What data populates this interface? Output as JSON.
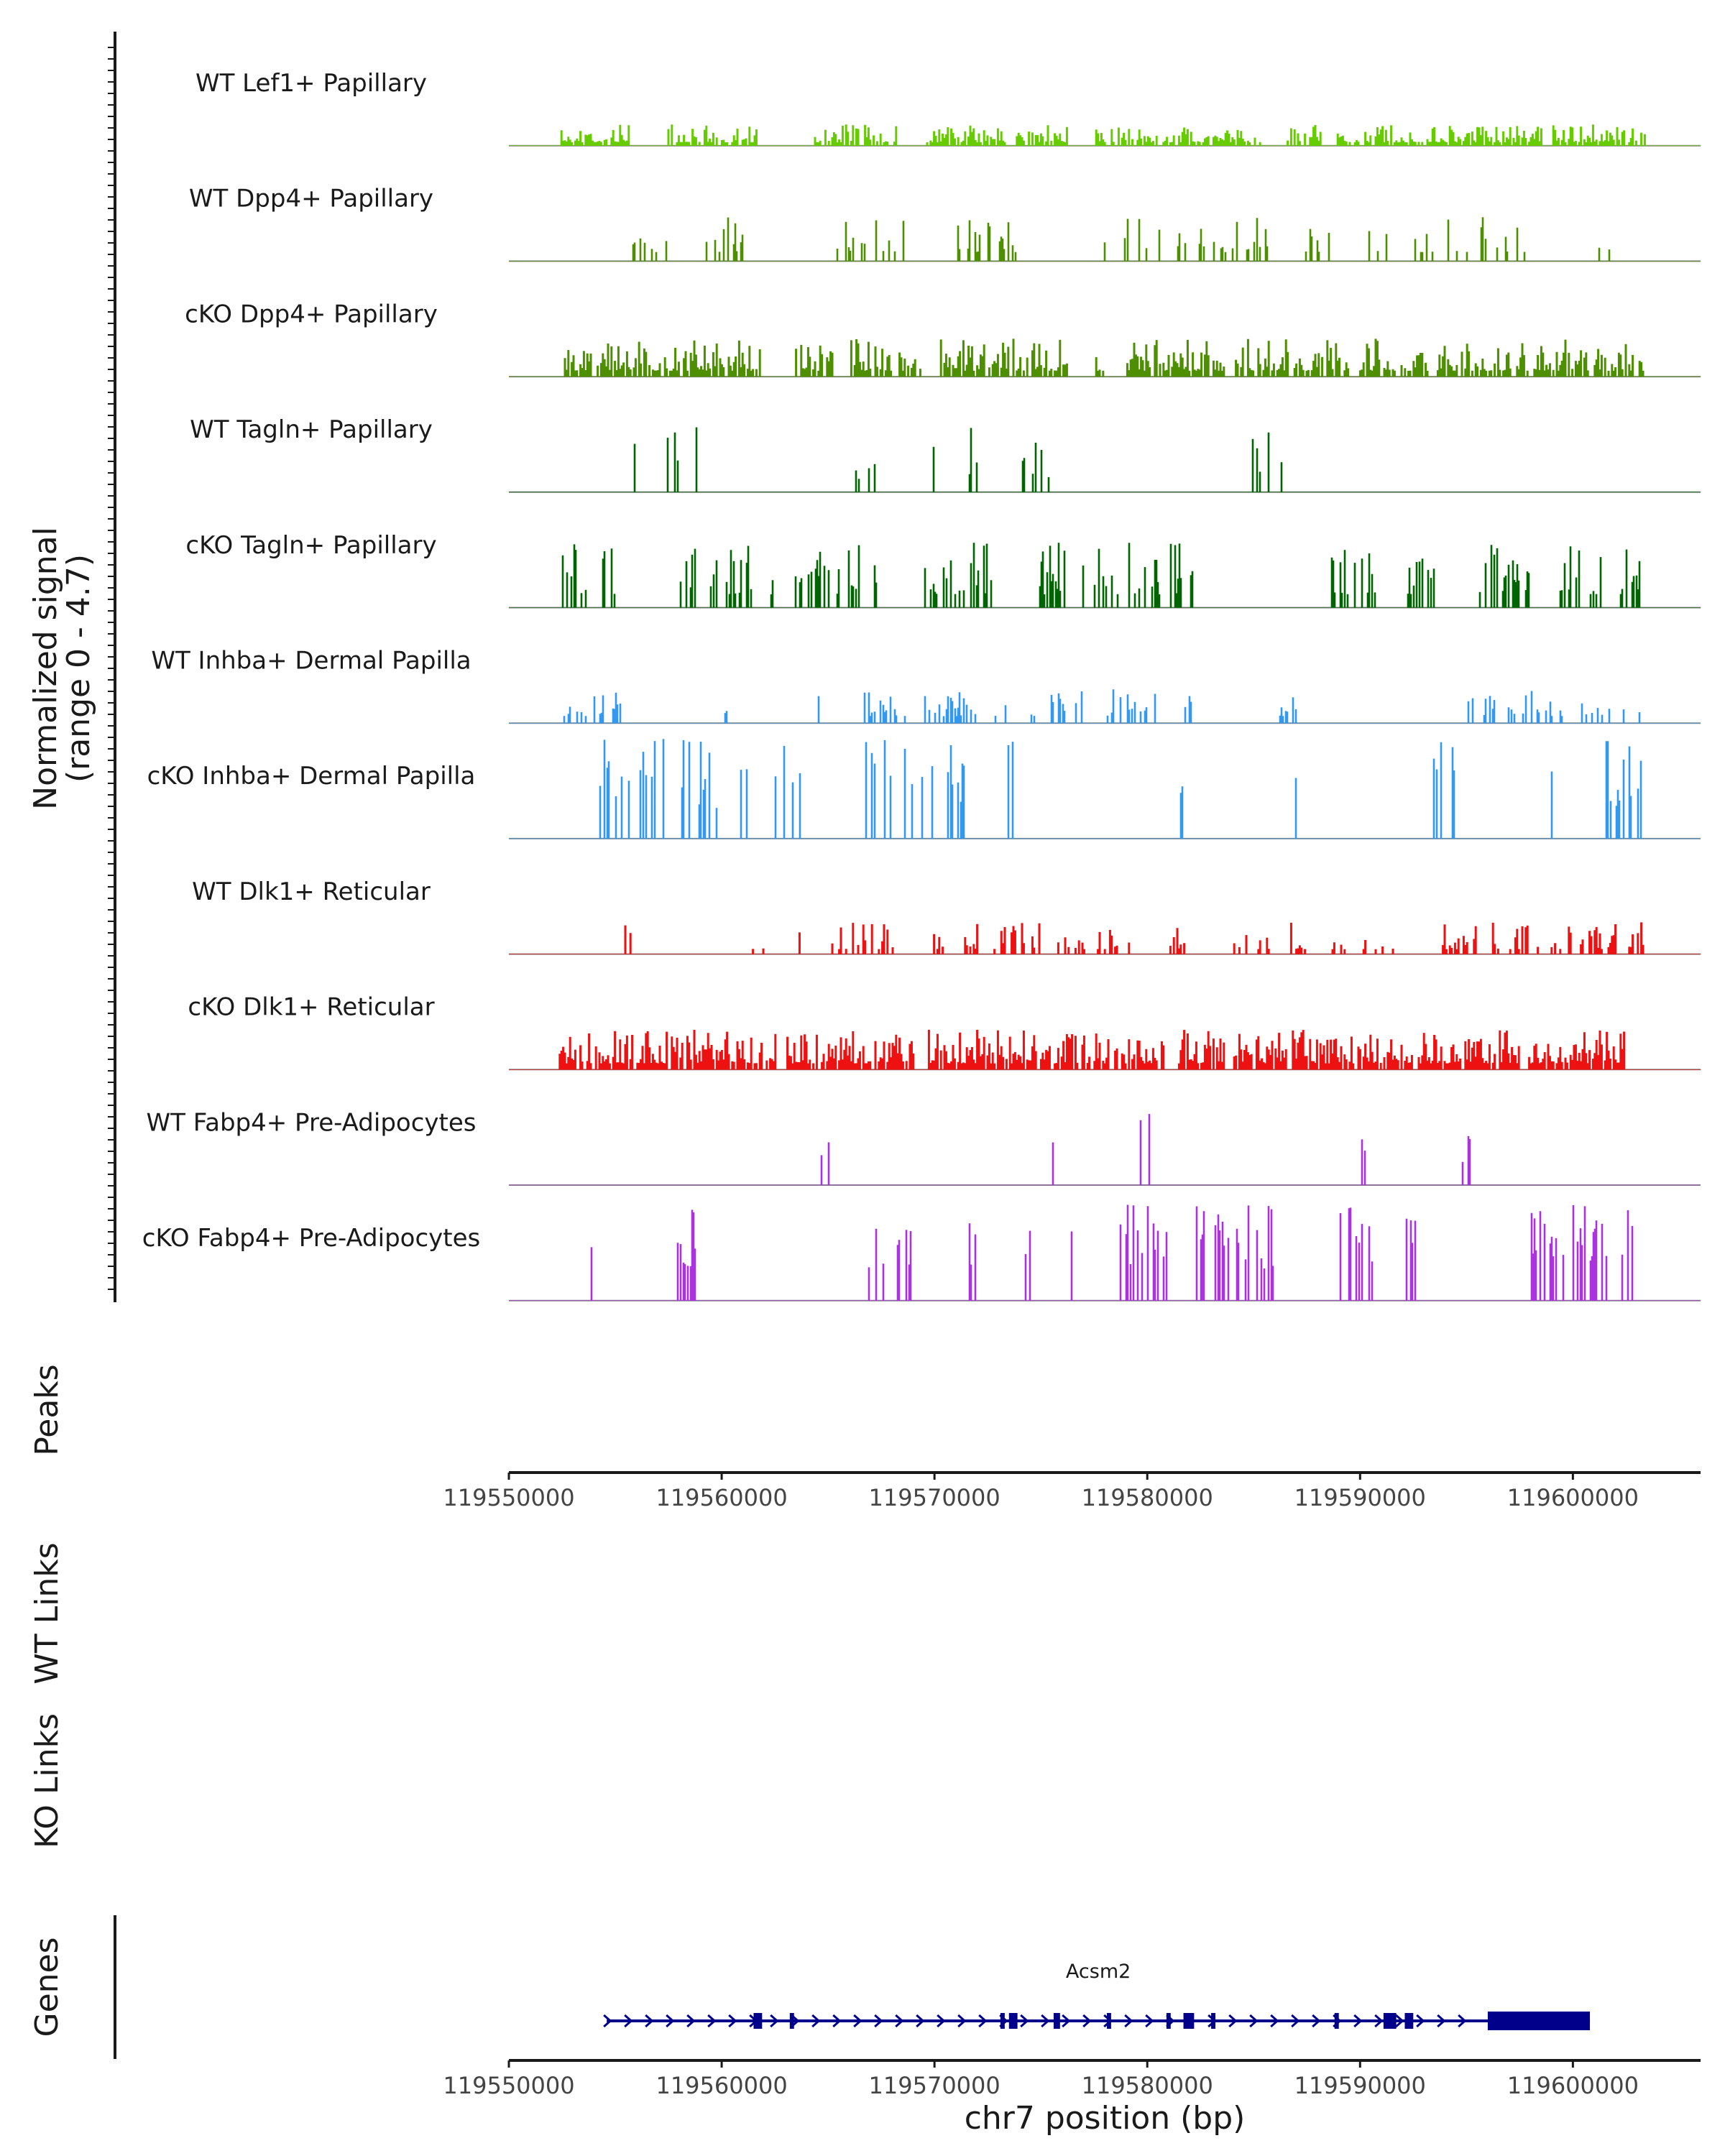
{
  "chart_data": {
    "type": "area",
    "region": {
      "chromosome": "chr7",
      "start": 119550000,
      "end": 119606000
    },
    "coverage_ylabel_line1": "Normalized signal",
    "coverage_ylabel_line2": "(range 0 - 4.7)",
    "y_range": [
      0,
      4.7
    ],
    "tracks": [
      {
        "name": "WT Lef1+ Papillary",
        "color": "#66cc00",
        "style": "dense",
        "density": 0.75,
        "scale": 0.2,
        "spans": [
          [
            119552400,
            119555600
          ],
          [
            119557400,
            119561600
          ],
          [
            119564300,
            119568400
          ],
          [
            119569500,
            119573400
          ],
          [
            119573700,
            119576200
          ],
          [
            119577500,
            119585400
          ],
          [
            119586500,
            119588100
          ],
          [
            119588900,
            119598600
          ],
          [
            119599000,
            119603400
          ]
        ]
      },
      {
        "name": "WT Dpp4+ Papillary",
        "color": "#4d8f00",
        "style": "sparse",
        "density": 0.22,
        "scale": 0.42,
        "spans": [
          [
            119555800,
            119558000
          ],
          [
            119558800,
            119561400
          ],
          [
            119565400,
            119568700
          ],
          [
            119570700,
            119573800
          ],
          [
            119577800,
            119585600
          ],
          [
            119587100,
            119597700
          ],
          [
            119601000,
            119601700
          ]
        ]
      },
      {
        "name": "cKO Dpp4+ Papillary",
        "color": "#4d8f00",
        "style": "dense",
        "density": 0.7,
        "scale": 0.36,
        "spans": [
          [
            119552400,
            119561800
          ],
          [
            119563400,
            119565200
          ],
          [
            119566000,
            119569400
          ],
          [
            119570200,
            119576200
          ],
          [
            119577500,
            119578200
          ],
          [
            119579000,
            119583600
          ],
          [
            119584100,
            119589400
          ],
          [
            119589900,
            119593200
          ],
          [
            119593600,
            119603400
          ]
        ]
      },
      {
        "name": "WT Tagln+ Papillary",
        "color": "#006400",
        "style": "sparse",
        "density": 0.28,
        "scale": 0.62,
        "spans": [
          [
            119555700,
            119556000
          ],
          [
            119557400,
            119558800
          ],
          [
            119566100,
            119567800
          ],
          [
            119569700,
            119570000
          ],
          [
            119571400,
            119572200
          ],
          [
            119573700,
            119575600
          ],
          [
            119584800,
            119586600
          ]
        ]
      },
      {
        "name": "cKO Tagln+ Papillary",
        "color": "#006400",
        "style": "sparse",
        "density": 0.35,
        "scale": 0.62,
        "spans": [
          [
            119552400,
            119553600
          ],
          [
            119554000,
            119555100
          ],
          [
            119557300,
            119561400
          ],
          [
            119561800,
            119562600
          ],
          [
            119563400,
            119564800
          ],
          [
            119564900,
            119567400
          ],
          [
            119569500,
            119572800
          ],
          [
            119574900,
            119576400
          ],
          [
            119576900,
            119578700
          ],
          [
            119579100,
            119580800
          ],
          [
            119581000,
            119582100
          ],
          [
            119588500,
            119590700
          ],
          [
            119592200,
            119593700
          ],
          [
            119595500,
            119598000
          ],
          [
            119599300,
            119601600
          ],
          [
            119602100,
            119603200
          ]
        ]
      },
      {
        "name": "WT Inhba+ Dermal Papilla",
        "color": "#3399ee",
        "style": "sparse",
        "density": 0.3,
        "scale": 0.32,
        "spans": [
          [
            119552300,
            119555300
          ],
          [
            119559800,
            119560300
          ],
          [
            119564400,
            119564600
          ],
          [
            119566400,
            119572100
          ],
          [
            119572300,
            119573800
          ],
          [
            119574500,
            119578000
          ],
          [
            119578100,
            119580400
          ],
          [
            119581100,
            119582100
          ],
          [
            119586200,
            119587000
          ],
          [
            119594900,
            119599900
          ],
          [
            119600200,
            119603200
          ]
        ]
      },
      {
        "name": "cKO Inhba+ Dermal Papilla",
        "color": "#3399ee",
        "style": "spiky",
        "density": 0.3,
        "scale": 0.95,
        "spans": [
          [
            119554100,
            119558200
          ],
          [
            119558400,
            119560200
          ],
          [
            119560800,
            119561400
          ],
          [
            119562400,
            119564400
          ],
          [
            119566600,
            119570000
          ],
          [
            119570500,
            119571800
          ],
          [
            119573300,
            119573800
          ],
          [
            119581500,
            119582100
          ],
          [
            119586600,
            119587100
          ],
          [
            119588700,
            119588900
          ],
          [
            119593300,
            119594400
          ],
          [
            119598800,
            119599400
          ],
          [
            119601400,
            119603300
          ]
        ]
      },
      {
        "name": "WT Dlk1+ Reticular",
        "color": "#ee1111",
        "style": "dense",
        "density": 0.4,
        "scale": 0.3,
        "spans": [
          [
            119555400,
            119555800
          ],
          [
            119561300,
            119562000
          ],
          [
            119563000,
            119563800
          ],
          [
            119564600,
            119568000
          ],
          [
            119569800,
            119570700
          ],
          [
            119571400,
            119572300
          ],
          [
            119572700,
            119574900
          ],
          [
            119575700,
            119577000
          ],
          [
            119577600,
            119579200
          ],
          [
            119580900,
            119581700
          ],
          [
            119584000,
            119585700
          ],
          [
            119586500,
            119587600
          ],
          [
            119588300,
            119589300
          ],
          [
            119590100,
            119591600
          ],
          [
            119593500,
            119596600
          ],
          [
            119597000,
            119598400
          ],
          [
            119598800,
            119603400
          ]
        ]
      },
      {
        "name": "cKO Dlk1+ Reticular",
        "color": "#ee1111",
        "style": "dense",
        "density": 0.82,
        "scale": 0.38,
        "spans": [
          [
            119552300,
            119562500
          ],
          [
            119563000,
            119569000
          ],
          [
            119569600,
            119578200
          ],
          [
            119578400,
            119580800
          ],
          [
            119581400,
            119583700
          ],
          [
            119584000,
            119586500
          ],
          [
            119586800,
            119592400
          ],
          [
            119592700,
            119597500
          ],
          [
            119597900,
            119602400
          ]
        ]
      },
      {
        "name": "WT Fabp4+ Pre-Adipocytes",
        "color": "#aa33dd",
        "style": "spiky",
        "density": 0.45,
        "scale": 0.7,
        "spans": [
          [
            119564600,
            119565000
          ],
          [
            119575300,
            119575600
          ],
          [
            119579600,
            119580200
          ],
          [
            119590000,
            119590800
          ],
          [
            119594700,
            119595200
          ]
        ]
      },
      {
        "name": "cKO Fabp4+ Pre-Adipocytes",
        "color": "#aa33dd",
        "style": "spiky",
        "density": 0.3,
        "scale": 0.92,
        "spans": [
          [
            119552100,
            119552600
          ],
          [
            119553800,
            119554300
          ],
          [
            119557900,
            119558800
          ],
          [
            119566800,
            119567700
          ],
          [
            119568200,
            119569000
          ],
          [
            119571400,
            119572200
          ],
          [
            119574200,
            119574500
          ],
          [
            119576400,
            119576600
          ],
          [
            119578700,
            119581100
          ],
          [
            119582200,
            119584800
          ],
          [
            119585000,
            119586200
          ],
          [
            119587600,
            119588100
          ],
          [
            119588700,
            119591000
          ],
          [
            119592100,
            119592700
          ],
          [
            119597900,
            119599200
          ],
          [
            119599500,
            119602800
          ]
        ]
      }
    ],
    "panel_labels": {
      "peaks": "Peaks",
      "wt_links": "WT Links",
      "ko_links": "KO Links",
      "genes": "Genes"
    },
    "x_ticks": [
      119550000,
      119560000,
      119570000,
      119580000,
      119590000,
      119600000
    ],
    "x_tick_labels": [
      "119550000",
      "119560000",
      "119570000",
      "119580000",
      "119590000",
      "119600000"
    ],
    "xlabel": "chr7 position (bp)",
    "gene": {
      "name": "Acsm2",
      "color": "#00008b",
      "start": 119554600,
      "end": 119600800,
      "strand": "+",
      "exons": [
        [
          119561500,
          119561900
        ],
        [
          119563200,
          119563400
        ],
        [
          119573100,
          119573300
        ],
        [
          119573500,
          119573900
        ],
        [
          119575600,
          119575900
        ],
        [
          119578100,
          119578300
        ],
        [
          119580900,
          119581100
        ],
        [
          119581700,
          119582200
        ],
        [
          119583000,
          119583200
        ],
        [
          119588800,
          119589000
        ],
        [
          119591100,
          119591700
        ],
        [
          119592100,
          119592500
        ],
        [
          119596000,
          119600800
        ]
      ]
    }
  }
}
